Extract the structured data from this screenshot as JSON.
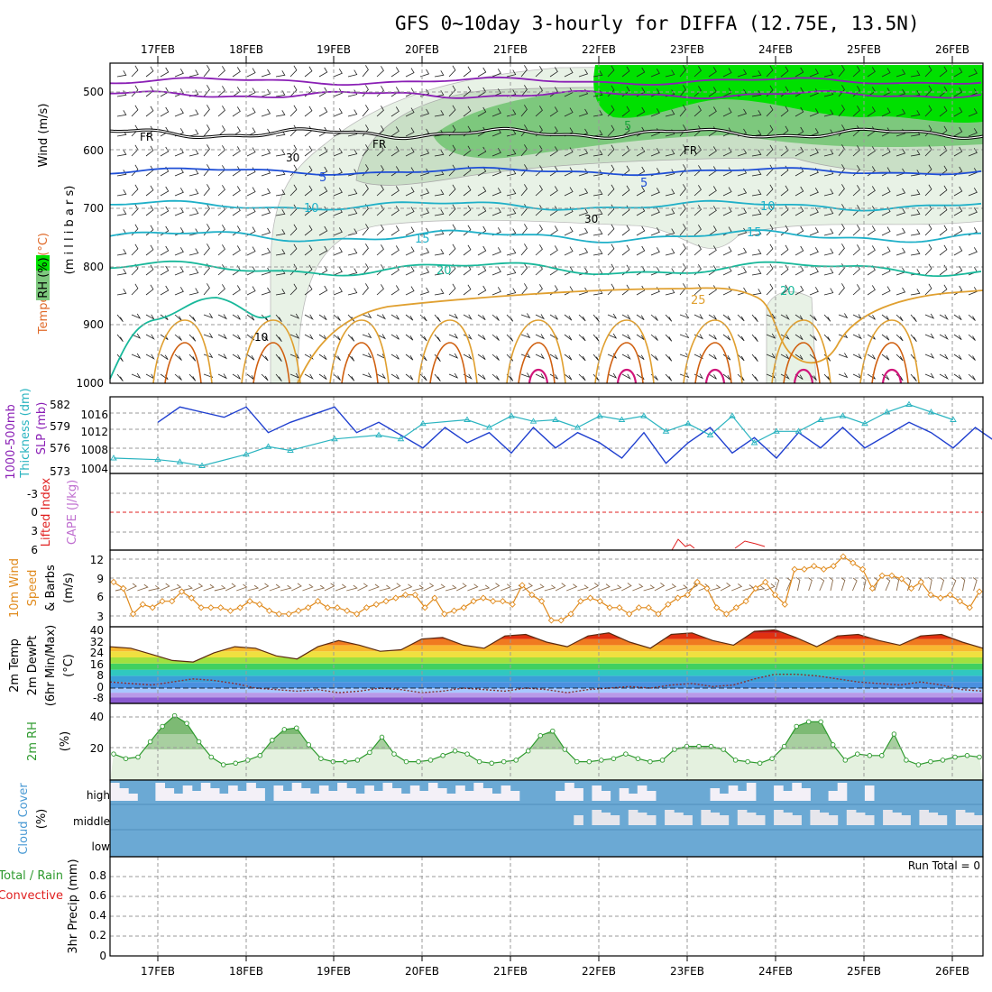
{
  "title": "GFS 0~10day 3-hourly for DIFFA (12.75E, 13.5N)",
  "dates": [
    "17FEB",
    "18FEB",
    "19FEB",
    "20FEB",
    "21FEB",
    "22FEB",
    "23FEB",
    "24FEB",
    "25FEB",
    "26FEB"
  ],
  "colors": {
    "rh_green": "#00e000",
    "rh_mid": "#7dc87d",
    "rh_light": "#e8f2e6",
    "temp_purple": "#8a1fb5",
    "temp_blue": "#1f4fd6",
    "temp_cyan": "#1fb0c8",
    "temp_teal": "#18b89a",
    "temp_orange": "#e0a030",
    "temp_magenta": "#d0157a",
    "slp": "#1f3fcf",
    "thickness": "#2ab4c0",
    "wind10m": "#e08a1c",
    "rh2m": "#2e9a2e",
    "cloud": "#6ba9d4",
    "cloud_light": "#f3f0f7"
  },
  "panels": [
    {
      "id": "upper",
      "labels": [
        {
          "text": "Wind (m/s)",
          "color": "#000000"
        },
        {
          "text": "Temperature (°C)",
          "color": "#e06a2a"
        },
        {
          "text": "(m i l l i b a r s)",
          "color": "#000000"
        },
        {
          "text": "RH (%)",
          "color": "#000000"
        }
      ],
      "yticks": [
        "500",
        "600",
        "700",
        "800",
        "900",
        "1000"
      ],
      "contour_labels": [
        "FR",
        "FR",
        "FR",
        "5",
        "5",
        "5",
        "10",
        "10",
        "15",
        "15",
        "20",
        "20",
        "25",
        "30",
        "30",
        "10"
      ]
    },
    {
      "id": "slp",
      "labels": [
        {
          "text": "1000-500mb",
          "color": "#8a1fb5"
        },
        {
          "text": "Thickness (dm)",
          "color": "#2ab4c0"
        },
        {
          "text": "SLP (mb)",
          "color": "#8a1fb5"
        }
      ],
      "yticks_left": [
        "582",
        "579",
        "576",
        "573"
      ],
      "yticks_right": [
        "1016",
        "1012",
        "1008",
        "1004"
      ]
    },
    {
      "id": "cape",
      "labels": [
        {
          "text": "Lifted Index",
          "color": "#e02020"
        },
        {
          "text": "CAPE (J/kg)",
          "color": "#c070d0"
        }
      ],
      "yticks": [
        "-3",
        "0",
        "3",
        "6"
      ]
    },
    {
      "id": "wind10",
      "labels": [
        {
          "text": "10m Wind",
          "color": "#e08a1c"
        },
        {
          "text": "Speed",
          "color": "#e08a1c"
        },
        {
          "text": "& Barbs",
          "color": "#000000"
        },
        {
          "text": "(m/s)",
          "color": "#000000"
        }
      ],
      "yticks": [
        "12",
        "9",
        "6",
        "3"
      ]
    },
    {
      "id": "temp2m",
      "labels": [
        {
          "text": "2m Temp",
          "color": "#000000"
        },
        {
          "text": "2m DewPt",
          "color": "#000000"
        },
        {
          "text": "(6hr Min/Max)",
          "color": "#000000"
        },
        {
          "text": "(°C)",
          "color": "#000000"
        }
      ],
      "yticks": [
        "40",
        "32",
        "24",
        "16",
        "8",
        "0",
        "-8"
      ]
    },
    {
      "id": "rh2m",
      "labels": [
        {
          "text": "2m RH",
          "color": "#2e9a2e"
        },
        {
          "text": "(%)",
          "color": "#000000"
        }
      ],
      "yticks": [
        "40",
        "20"
      ]
    },
    {
      "id": "cloud",
      "labels": [
        {
          "text": "Cloud Cover",
          "color": "#4a9ad4"
        },
        {
          "text": "(%)",
          "color": "#000000"
        }
      ],
      "yticks": [
        "high",
        "middle",
        "low"
      ]
    },
    {
      "id": "precip",
      "labels": [
        {
          "text": "Total / Rain",
          "color": "#2e9a2e"
        },
        {
          "text": "Convective",
          "color": "#e02020"
        },
        {
          "text": "3hr Precip (mm)",
          "color": "#000000"
        }
      ],
      "yticks": [
        "0.8",
        "0.6",
        "0.4",
        "0.2",
        "0"
      ],
      "annotation": "Run Total = 0"
    }
  ],
  "chart_data": [
    {
      "type": "line",
      "title": "Thickness & SLP",
      "x": [
        "17FEB",
        "18FEB",
        "19FEB",
        "20FEB",
        "21FEB",
        "22FEB",
        "23FEB",
        "24FEB",
        "25FEB",
        "26FEB"
      ],
      "series": [
        {
          "name": "SLP (mb)",
          "values": [
            1016,
            1016,
            1014,
            1010,
            1008,
            1010,
            1008,
            1010,
            1012,
            1011
          ]
        },
        {
          "name": "Thickness (dm)",
          "values": [
            574,
            576,
            578,
            580,
            580,
            580,
            578,
            580,
            580,
            581
          ]
        }
      ],
      "ylim": [
        1004,
        1018
      ]
    },
    {
      "type": "line",
      "title": "10m Wind Speed",
      "x": [
        "17FEB",
        "18FEB",
        "19FEB",
        "20FEB",
        "21FEB",
        "22FEB",
        "23FEB",
        "24FEB",
        "25FEB",
        "26FEB"
      ],
      "series": [
        {
          "name": "Speed (m/s)",
          "values": [
            4,
            4,
            3,
            4,
            4,
            3,
            5,
            10,
            9,
            6
          ]
        }
      ],
      "ylim": [
        1,
        13
      ]
    },
    {
      "type": "area",
      "title": "2m Temp",
      "x": [
        "17FEB",
        "18FEB",
        "19FEB",
        "20FEB",
        "21FEB",
        "22FEB",
        "23FEB",
        "24FEB",
        "25FEB",
        "26FEB"
      ],
      "series": [
        {
          "name": "Temp max (°C)",
          "values": [
            26,
            26,
            31,
            33,
            36,
            35,
            36,
            37,
            34,
            34
          ]
        },
        {
          "name": "DewPt (°C)",
          "values": [
            4,
            1,
            -2,
            -1,
            -2,
            0,
            2,
            9,
            4,
            -2
          ]
        }
      ],
      "ylim": [
        -10,
        40
      ]
    },
    {
      "type": "area",
      "title": "2m RH",
      "x": [
        "17FEB",
        "18FEB",
        "19FEB",
        "20FEB",
        "21FEB",
        "22FEB",
        "23FEB",
        "24FEB",
        "25FEB",
        "26FEB"
      ],
      "series": [
        {
          "name": "RH (%)",
          "values": [
            45,
            34,
            25,
            19,
            32,
            14,
            24,
            39,
            30,
            16
          ]
        }
      ],
      "ylim": [
        0,
        50
      ]
    },
    {
      "type": "bar",
      "title": "3hr Precip",
      "x": [
        "17FEB",
        "18FEB",
        "19FEB",
        "20FEB",
        "21FEB",
        "22FEB",
        "23FEB",
        "24FEB",
        "25FEB",
        "26FEB"
      ],
      "series": [
        {
          "name": "Precip (mm)",
          "values": [
            0,
            0,
            0,
            0,
            0,
            0,
            0,
            0,
            0,
            0
          ]
        }
      ],
      "ylim": [
        0,
        1
      ]
    }
  ]
}
